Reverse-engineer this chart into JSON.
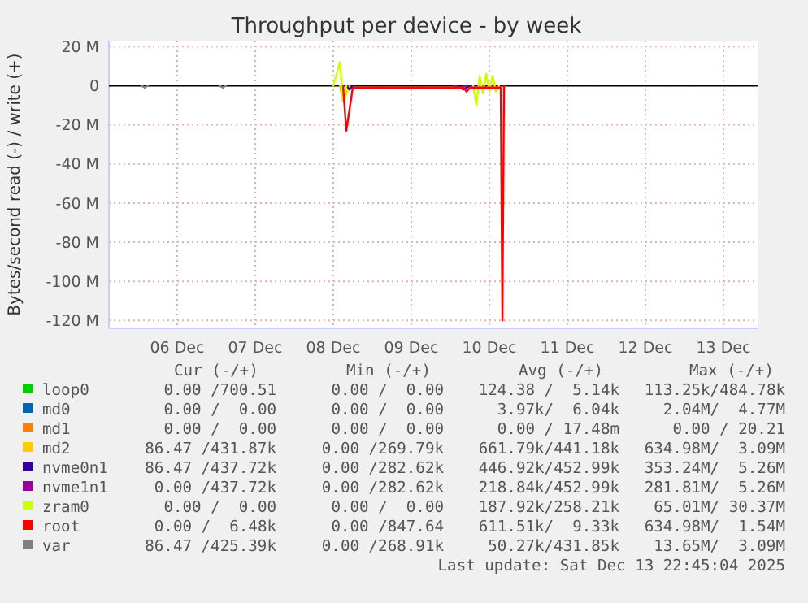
{
  "chart_data": {
    "type": "line",
    "title": "Throughput per device - by week",
    "ylabel": "Bytes/second read (-) / write (+)",
    "xlim": [
      "2025-12-05T15:00",
      "2025-12-13T22:30"
    ],
    "xticks": [
      {
        "value": "2025-12-06T12:00",
        "label": "06 Dec"
      },
      {
        "value": "2025-12-07T12:00",
        "label": "07 Dec"
      },
      {
        "value": "2025-12-08T12:00",
        "label": "08 Dec"
      },
      {
        "value": "2025-12-09T12:00",
        "label": "09 Dec"
      },
      {
        "value": "2025-12-10T12:00",
        "label": "10 Dec"
      },
      {
        "value": "2025-12-11T12:00",
        "label": "11 Dec"
      },
      {
        "value": "2025-12-12T12:00",
        "label": "12 Dec"
      },
      {
        "value": "2025-12-13T12:00",
        "label": "13 Dec"
      }
    ],
    "ylim": [
      -124,
      23
    ],
    "yticks": [
      {
        "value": 20,
        "label": "20 M"
      },
      0,
      {
        "value": -20,
        "label": "-20 M"
      },
      {
        "value": -40,
        "label": "-40 M"
      },
      {
        "value": -60,
        "label": "-60 M"
      },
      {
        "value": -80,
        "label": "-80 M"
      },
      {
        "value": -100,
        "label": "-100 M"
      },
      {
        "value": -120,
        "label": "-120 M"
      }
    ],
    "grid": true,
    "legend": "bottom",
    "marker": "none",
    "line_style": "solid",
    "series": [
      {
        "name": "loop0",
        "color": "#00cc00"
      },
      {
        "name": "md0",
        "color": "#0066b3"
      },
      {
        "name": "md1",
        "color": "#ff8000"
      },
      {
        "name": "md2",
        "color": "#ffcc00",
        "x": [
          "2025-12-08T14:00",
          "2025-12-08T15:00",
          "2025-12-08T17:00"
        ],
        "values": [
          0,
          -8,
          0
        ]
      },
      {
        "name": "nvme0n1",
        "color": "#330099",
        "x": [
          "2025-12-08T16:00",
          "2025-12-08T17:00",
          "2025-12-08T18:00",
          "2025-12-09T12:00",
          "2025-12-10T02:00",
          "2025-12-10T04:00",
          "2025-12-10T06:00"
        ],
        "values": [
          0,
          -2,
          0,
          null,
          0,
          -2,
          0
        ]
      },
      {
        "name": "nvme1n1",
        "color": "#990099",
        "x": [
          "2025-12-10T01:00",
          "2025-12-10T03:00",
          "2025-12-10T05:00"
        ],
        "values": [
          0,
          -1,
          0
        ]
      },
      {
        "name": "zram0",
        "color": "#ccff00",
        "x": [
          "2025-12-08T12:00",
          "2025-12-08T14:00",
          "2025-12-08T15:00",
          "2025-12-08T16:00",
          "2025-12-09T12:00",
          "2025-12-10T07:00",
          "2025-12-10T08:00",
          "2025-12-10T09:00",
          "2025-12-10T10:00",
          "2025-12-10T11:00",
          "2025-12-10T12:00",
          "2025-12-10T13:00",
          "2025-12-10T14:00",
          "2025-12-10T15:00"
        ],
        "values": [
          0,
          12,
          -8,
          0,
          null,
          0,
          -10,
          5,
          -4,
          6,
          -3,
          5,
          -3,
          0
        ]
      },
      {
        "name": "root",
        "color": "#ff0000",
        "x": [
          "2025-12-08T15:00",
          "2025-12-08T16:00",
          "2025-12-08T18:00",
          "2025-12-10T04:00",
          "2025-12-10T05:00",
          "2025-12-10T06:00",
          "2025-12-10T15:30",
          "2025-12-10T16:00",
          "2025-12-10T16:30"
        ],
        "values": [
          0,
          -23,
          -1,
          -1,
          -3,
          -1,
          -1,
          -120,
          0
        ]
      },
      {
        "name": "var",
        "color": "#808080",
        "x": [
          "2025-12-06T01:00",
          "2025-12-06T02:00",
          "2025-12-06T03:00",
          "2025-12-06T12:00",
          "2025-12-07T01:00",
          "2025-12-07T02:00",
          "2025-12-07T03:00"
        ],
        "values": [
          0,
          -1,
          0,
          null,
          0,
          -1,
          0
        ]
      }
    ],
    "annotations": [
      "Cur (-/+)",
      "Min (-/+)",
      "Avg (-/+)",
      "Max (-/+)",
      "0.00 /700.51",
      "0.00 /  0.00",
      "124.38 /  5.14k",
      "113.25k/484.78k",
      "0.00 /  0.00",
      "0.00 /  0.00",
      "3.97k/  6.04k",
      "2.04M/  4.77M",
      "0.00 /  0.00",
      "0.00 /  0.00",
      "0.00 / 17.48m",
      "0.00 / 20.21",
      "86.47 /431.87k",
      "0.00 /269.79k",
      "661.79k/441.18k",
      "634.98M/  3.09M",
      "86.47 /437.72k",
      "0.00 /282.62k",
      "446.92k/452.99k",
      "353.24M/  5.26M",
      "0.00 /437.72k",
      "0.00 /282.62k",
      "218.84k/452.99k",
      "281.81M/  5.26M",
      "0.00 /  0.00",
      "0.00 /  0.00",
      "187.92k/258.21k",
      "65.01M/ 30.37M",
      "0.00 /  6.48k",
      "0.00 /847.64",
      "611.51k/  9.33k",
      "634.98M/  1.54M",
      "86.47 /425.39k",
      "0.00 /268.91k",
      "50.27k/431.85k",
      "13.65M/  3.09M",
      "Last update: Sat Dec 13 22:45:04 2025"
    ]
  }
}
